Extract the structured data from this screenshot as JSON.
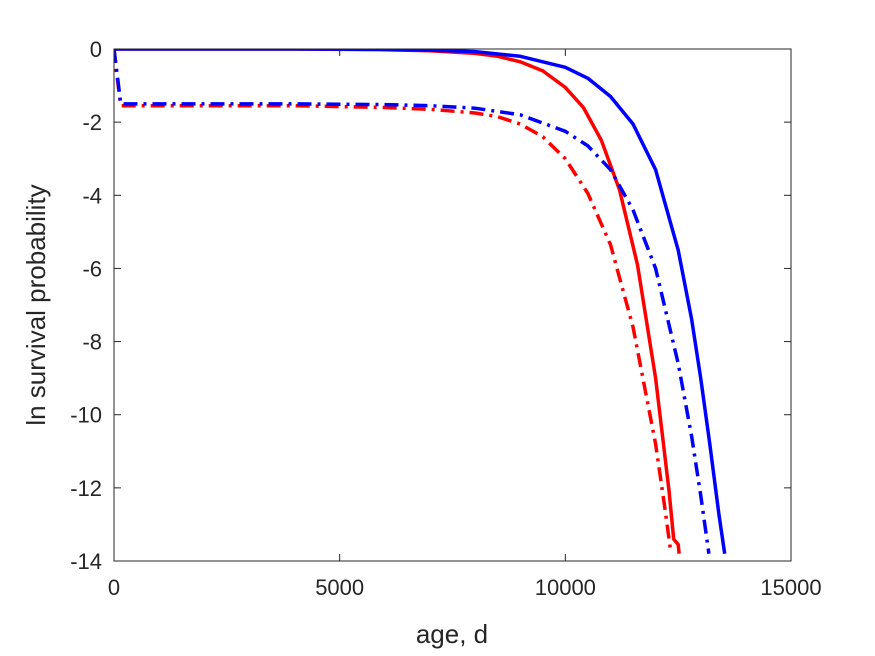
{
  "chart_data": {
    "type": "line",
    "title": "",
    "xlabel": "age, d",
    "ylabel": "ln survival probability",
    "xlim": [
      0,
      15000
    ],
    "ylim": [
      -14,
      0
    ],
    "x_ticks": [
      0,
      5000,
      10000,
      15000
    ],
    "y_ticks": [
      0,
      -2,
      -4,
      -6,
      -8,
      -10,
      -12,
      -14
    ],
    "x_tick_labels": [
      "0",
      "5000",
      "10000",
      "15000"
    ],
    "y_tick_labels": [
      "0",
      "-2",
      "-4",
      "-6",
      "-8",
      "-10",
      "-12",
      "-14"
    ],
    "grid": false,
    "box": true,
    "series": [
      {
        "color": "#ff0000",
        "line_style": "solid",
        "x": [
          0,
          2000,
          4000,
          6000,
          7000,
          8000,
          8500,
          9000,
          9500,
          10000,
          10400,
          10800,
          11200,
          11600,
          12000,
          12300,
          12400,
          12500,
          12520
        ],
        "y": [
          0,
          0,
          0,
          -0.02,
          -0.05,
          -0.12,
          -0.2,
          -0.35,
          -0.6,
          -1.05,
          -1.6,
          -2.5,
          -3.85,
          -5.9,
          -9.0,
          -12.1,
          -13.4,
          -13.55,
          -13.8
        ]
      },
      {
        "color": "#0000ff",
        "line_style": "solid",
        "x": [
          0,
          2000,
          4000,
          6000,
          7000,
          8000,
          9000,
          10000,
          10500,
          11000,
          11500,
          12000,
          12500,
          12800,
          13000,
          13200,
          13400,
          13530
        ],
        "y": [
          0,
          0,
          0,
          -0.01,
          -0.03,
          -0.07,
          -0.2,
          -0.5,
          -0.8,
          -1.3,
          -2.05,
          -3.3,
          -5.5,
          -7.4,
          -9.0,
          -10.8,
          -12.7,
          -13.8
        ]
      },
      {
        "color": "#ff0000",
        "line_style": "dashdot",
        "x": [
          0,
          50,
          150,
          2000,
          4000,
          6000,
          7000,
          8000,
          8500,
          9000,
          9500,
          10000,
          10500,
          11000,
          11500,
          12000,
          12200,
          12330
        ],
        "y": [
          0,
          -0.6,
          -1.55,
          -1.55,
          -1.55,
          -1.6,
          -1.65,
          -1.75,
          -1.85,
          -2.05,
          -2.4,
          -3.0,
          -3.95,
          -5.35,
          -7.6,
          -10.8,
          -12.5,
          -13.7
        ]
      },
      {
        "color": "#0000ff",
        "line_style": "dashdot",
        "x": [
          0,
          50,
          150,
          2000,
          4000,
          6000,
          7000,
          8000,
          9000,
          10000,
          10500,
          11000,
          11500,
          12000,
          12500,
          12800,
          13000,
          13180
        ],
        "y": [
          0,
          -0.5,
          -1.5,
          -1.5,
          -1.5,
          -1.52,
          -1.55,
          -1.62,
          -1.8,
          -2.25,
          -2.65,
          -3.3,
          -4.4,
          -6.0,
          -8.6,
          -10.6,
          -12.2,
          -13.8
        ]
      }
    ]
  }
}
